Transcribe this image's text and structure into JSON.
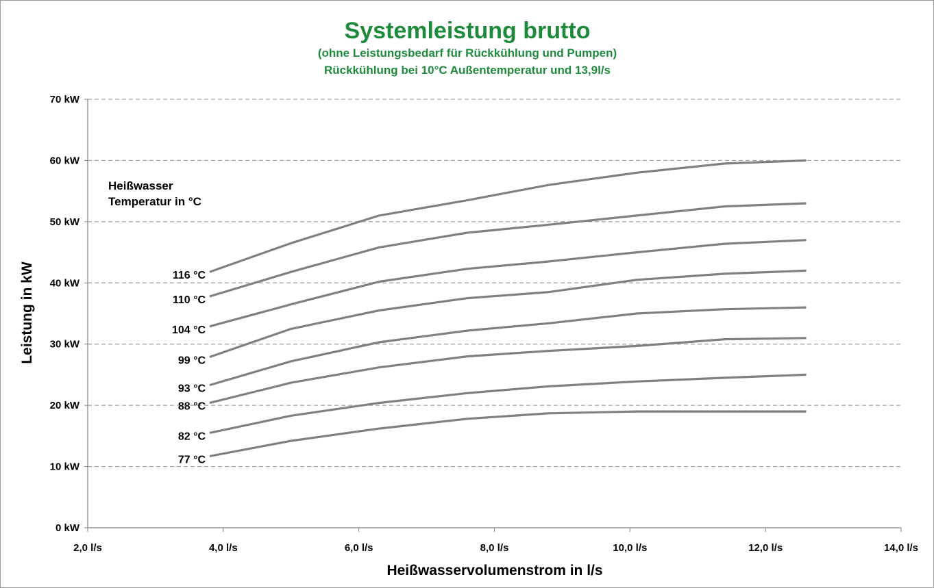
{
  "chart_data": {
    "type": "line",
    "title": "Systemleistung brutto",
    "subtitle_1": "(ohne Leistungsbedarf für Rückkühlung und Pumpen)",
    "subtitle_2": "Rückkühlung bei 10°C Außentemperatur  und 13,9l/s",
    "xlabel": "Heißwasservolumenstrom  in l/s",
    "ylabel": "Leistung in kW",
    "annotation_1": "Heißwasser",
    "annotation_2": "Temperatur in °C",
    "xlim": [
      2,
      14
    ],
    "ylim": [
      0,
      70
    ],
    "x_ticks": [
      {
        "value": 2,
        "label": "2,0 l/s"
      },
      {
        "value": 4,
        "label": "4,0 l/s"
      },
      {
        "value": 6,
        "label": "6,0 l/s"
      },
      {
        "value": 8,
        "label": "8,0 l/s"
      },
      {
        "value": 10,
        "label": "10,0 l/s"
      },
      {
        "value": 12,
        "label": "12,0 l/s"
      },
      {
        "value": 14,
        "label": "14,0 l/s"
      }
    ],
    "y_ticks": [
      {
        "value": 0,
        "label": "0 kW"
      },
      {
        "value": 10,
        "label": "10 kW"
      },
      {
        "value": 20,
        "label": "20 kW"
      },
      {
        "value": 30,
        "label": "30 kW"
      },
      {
        "value": 40,
        "label": "40 kW"
      },
      {
        "value": 50,
        "label": "50 kW"
      },
      {
        "value": 60,
        "label": "60 kW"
      },
      {
        "value": 70,
        "label": "70 kW"
      }
    ],
    "grid": "horizontal dashed",
    "line_color": "#808080",
    "x": [
      3.8,
      5.0,
      6.3,
      7.6,
      8.8,
      10.1,
      11.4,
      12.6
    ],
    "series": [
      {
        "name": "116 °C",
        "values": [
          41.8,
          46.5,
          51.0,
          53.5,
          56.0,
          58.0,
          59.5,
          60.0
        ]
      },
      {
        "name": "110 °C",
        "values": [
          37.8,
          41.8,
          45.8,
          48.2,
          49.5,
          51.0,
          52.5,
          53.0
        ]
      },
      {
        "name": "104 °C",
        "values": [
          32.9,
          36.5,
          40.2,
          42.3,
          43.5,
          45.0,
          46.4,
          47.0
        ]
      },
      {
        "name": "99 °C",
        "values": [
          27.9,
          32.5,
          35.5,
          37.5,
          38.5,
          40.5,
          41.5,
          42.0
        ]
      },
      {
        "name": "93 °C",
        "values": [
          23.3,
          27.2,
          30.3,
          32.2,
          33.4,
          35.0,
          35.7,
          36.0
        ]
      },
      {
        "name": "88 °C",
        "values": [
          20.4,
          23.7,
          26.2,
          28.0,
          28.9,
          29.7,
          30.8,
          31.0
        ]
      },
      {
        "name": "82 °C",
        "values": [
          15.5,
          18.3,
          20.4,
          22.0,
          23.1,
          23.9,
          24.5,
          25.0
        ]
      },
      {
        "name": "77 °C",
        "values": [
          11.7,
          14.2,
          16.2,
          17.8,
          18.7,
          19.0,
          19.0,
          19.0
        ]
      }
    ]
  }
}
